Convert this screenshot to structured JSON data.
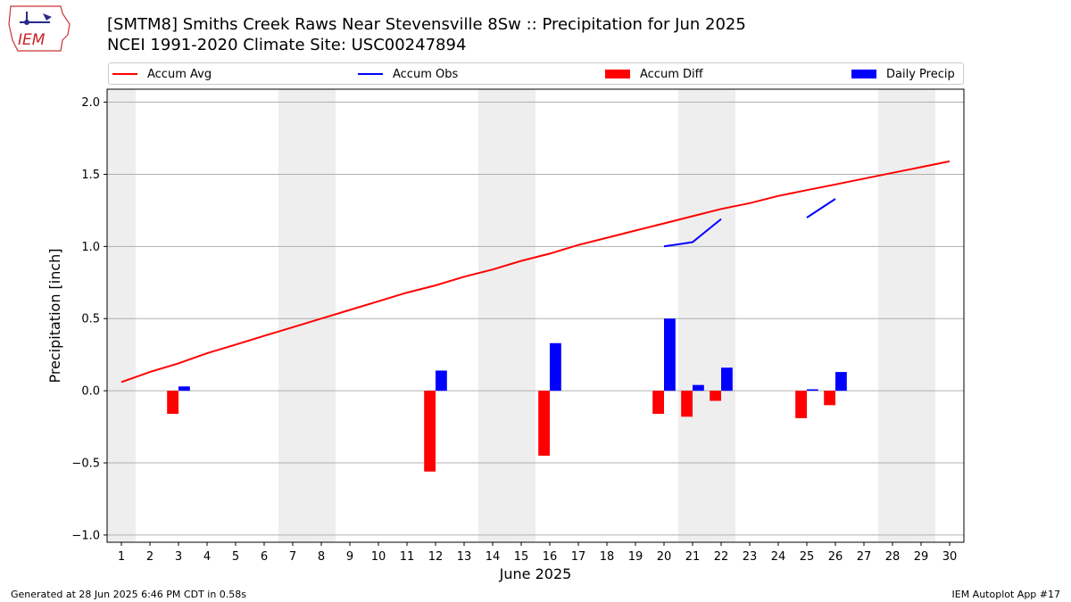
{
  "header": {
    "title_line1": "[SMTM8] Smiths Creek Raws Near Stevensville 8Sw :: Precipitation for Jun 2025",
    "title_line2": "NCEI 1991-2020 Climate Site: USC00247894",
    "logo_text": "IEM"
  },
  "footer": {
    "left": "Generated at 28 Jun 2025 6:46 PM CDT in 0.58s",
    "right": "IEM Autoplot App #17"
  },
  "colors": {
    "avg": "#ff0000",
    "obs": "#0000ff",
    "diff": "#ff0000",
    "daily": "#0000ff",
    "weekend_band": "#eeeeee",
    "grid": "#b0b0b0"
  },
  "chart_data": {
    "type": "bar",
    "title": "[SMTM8] Smiths Creek Raws Near Stevensville 8Sw :: Precipitation for Jun 2025",
    "subtitle": "NCEI 1991-2020 Climate Site: USC00247894",
    "xlabel": "June 2025",
    "ylabel": "Precipitation [inch]",
    "ylim": [
      -1.05,
      2.09
    ],
    "xlim": [
      0.5,
      30.5
    ],
    "yticks": [
      -1.0,
      -0.5,
      0.0,
      0.5,
      1.0,
      1.5,
      2.0
    ],
    "ytick_labels": [
      "−1.0",
      "−0.5",
      "0.0",
      "0.5",
      "1.0",
      "1.5",
      "2.0"
    ],
    "x": [
      1,
      2,
      3,
      4,
      5,
      6,
      7,
      8,
      9,
      10,
      11,
      12,
      13,
      14,
      15,
      16,
      17,
      18,
      19,
      20,
      21,
      22,
      23,
      24,
      25,
      26,
      27,
      28,
      29,
      30
    ],
    "xtick_labels": [
      "1",
      "2",
      "3",
      "4",
      "5",
      "6",
      "7",
      "8",
      "9",
      "10",
      "11",
      "12",
      "13",
      "14",
      "15",
      "16",
      "17",
      "18",
      "19",
      "20",
      "21",
      "22",
      "23",
      "24",
      "25",
      "26",
      "27",
      "28",
      "29",
      "30"
    ],
    "grid": "y",
    "legend_position": "top",
    "weekend_days": [
      1,
      7,
      8,
      14,
      15,
      21,
      22,
      28,
      29
    ],
    "legend": [
      "Accum Avg",
      "Accum Obs",
      "Accum Diff",
      "Daily Precip"
    ],
    "series": [
      {
        "name": "Accum Avg",
        "kind": "line",
        "values": [
          0.06,
          0.13,
          0.19,
          0.26,
          0.32,
          0.38,
          0.44,
          0.5,
          0.56,
          0.62,
          0.68,
          0.73,
          0.79,
          0.84,
          0.9,
          0.95,
          1.01,
          1.06,
          1.11,
          1.16,
          1.21,
          1.26,
          1.3,
          1.35,
          1.39,
          1.43,
          1.47,
          1.51,
          1.55,
          1.59
        ]
      },
      {
        "name": "Accum Obs",
        "kind": "line",
        "values": [
          null,
          null,
          null,
          null,
          null,
          null,
          null,
          null,
          null,
          null,
          null,
          null,
          null,
          null,
          null,
          null,
          null,
          null,
          null,
          1.0,
          1.03,
          1.19,
          null,
          null,
          1.2,
          1.33,
          null,
          null,
          null,
          null
        ]
      },
      {
        "name": "Accum Diff",
        "kind": "bar",
        "values": [
          null,
          null,
          -0.16,
          null,
          null,
          null,
          null,
          null,
          null,
          null,
          null,
          -0.56,
          null,
          null,
          null,
          -0.45,
          null,
          null,
          null,
          -0.16,
          -0.18,
          -0.07,
          null,
          null,
          -0.19,
          -0.1,
          null,
          null,
          null,
          null
        ]
      },
      {
        "name": "Daily Precip",
        "kind": "bar",
        "values": [
          null,
          null,
          0.03,
          null,
          null,
          null,
          null,
          null,
          null,
          null,
          null,
          0.14,
          null,
          null,
          null,
          0.33,
          null,
          null,
          null,
          0.5,
          0.04,
          0.16,
          null,
          null,
          0.01,
          0.13,
          null,
          null,
          null,
          null
        ]
      }
    ]
  }
}
